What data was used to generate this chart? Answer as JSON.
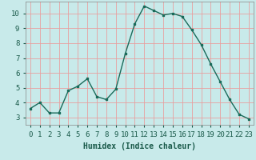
{
  "x": [
    0,
    1,
    2,
    3,
    4,
    5,
    6,
    7,
    8,
    9,
    10,
    11,
    12,
    13,
    14,
    15,
    16,
    17,
    18,
    19,
    20,
    21,
    22,
    23
  ],
  "y": [
    3.6,
    4.0,
    3.3,
    3.3,
    4.8,
    5.1,
    5.6,
    4.4,
    4.2,
    4.9,
    7.3,
    9.3,
    10.5,
    10.2,
    9.9,
    10.0,
    9.8,
    8.9,
    7.9,
    6.6,
    5.4,
    4.2,
    3.2,
    2.9
  ],
  "line_color": "#1a6b5a",
  "marker": "s",
  "marker_size": 2,
  "bg_color": "#c8eaea",
  "grid_color": "#e8a0a0",
  "xlabel": "Humidex (Indice chaleur)",
  "xlim": [
    -0.5,
    23.5
  ],
  "ylim": [
    2.5,
    10.8
  ],
  "yticks": [
    3,
    4,
    5,
    6,
    7,
    8,
    9,
    10
  ],
  "xticks": [
    0,
    1,
    2,
    3,
    4,
    5,
    6,
    7,
    8,
    9,
    10,
    11,
    12,
    13,
    14,
    15,
    16,
    17,
    18,
    19,
    20,
    21,
    22,
    23
  ],
  "xlabel_fontsize": 7,
  "tick_fontsize": 6.5,
  "line_width": 1.0,
  "text_color": "#1a5a4a"
}
